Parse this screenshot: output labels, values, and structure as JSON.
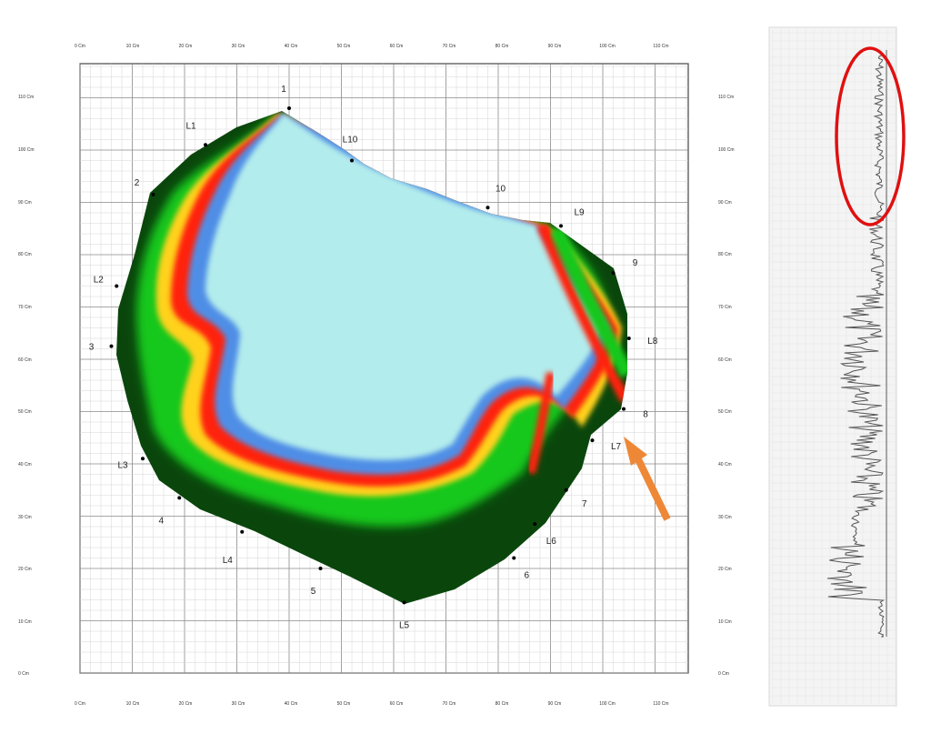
{
  "figure": {
    "x_axis": {
      "unit": "Cm",
      "ticks": [
        "0 Cm",
        "10 Cm",
        "20 Cm",
        "30 Cm",
        "40 Cm",
        "50 Cm",
        "60 Cm",
        "70 Cm",
        "80 Cm",
        "90 Cm",
        "100 Cm",
        "110 Cm"
      ]
    },
    "y_axis": {
      "unit": "Cm",
      "ticks": [
        "0 Cm",
        "10 Cm",
        "20 Cm",
        "30 Cm",
        "40 Cm",
        "50 Cm",
        "60 Cm",
        "70 Cm",
        "80 Cm",
        "90 Cm",
        "100 Cm",
        "110 Cm"
      ]
    },
    "perimeter_points": [
      {
        "label": "1",
        "x_cm": 40,
        "y_cm": 108
      },
      {
        "label": "L1",
        "x_cm": 24,
        "y_cm": 101
      },
      {
        "label": "2",
        "x_cm": 14,
        "y_cm": 91.5
      },
      {
        "label": "L2",
        "x_cm": 7,
        "y_cm": 74
      },
      {
        "label": "3",
        "x_cm": 6,
        "y_cm": 62.5
      },
      {
        "label": "L3",
        "x_cm": 12,
        "y_cm": 41
      },
      {
        "label": "4",
        "x_cm": 19,
        "y_cm": 33.5
      },
      {
        "label": "L4",
        "x_cm": 31,
        "y_cm": 27
      },
      {
        "label": "5",
        "x_cm": 46,
        "y_cm": 20
      },
      {
        "label": "L5",
        "x_cm": 62,
        "y_cm": 13.5
      },
      {
        "label": "6",
        "x_cm": 83,
        "y_cm": 22
      },
      {
        "label": "L6",
        "x_cm": 87,
        "y_cm": 28.5
      },
      {
        "label": "7",
        "x_cm": 93,
        "y_cm": 35
      },
      {
        "label": "L7",
        "x_cm": 98,
        "y_cm": 44.5
      },
      {
        "label": "8",
        "x_cm": 104,
        "y_cm": 50.5
      },
      {
        "label": "L8",
        "x_cm": 105,
        "y_cm": 64
      },
      {
        "label": "9",
        "x_cm": 102,
        "y_cm": 76.5
      },
      {
        "label": "L9",
        "x_cm": 92,
        "y_cm": 85.5
      },
      {
        "label": "10",
        "x_cm": 78,
        "y_cm": 89
      },
      {
        "label": "L10",
        "x_cm": 52,
        "y_cm": 98
      }
    ],
    "colors": {
      "cavity": "#b2ecec",
      "blue_band": "#4f8ee6",
      "red_band": "#ff2010",
      "yellow_band": "#ffd21a",
      "green_band": "#14c81a",
      "dark_green": "#0a460c",
      "callout_ring": "#e01010",
      "arrow": "#ee8836"
    }
  },
  "strip": {
    "annotation": "highlight-ellipse-on-top-section"
  }
}
